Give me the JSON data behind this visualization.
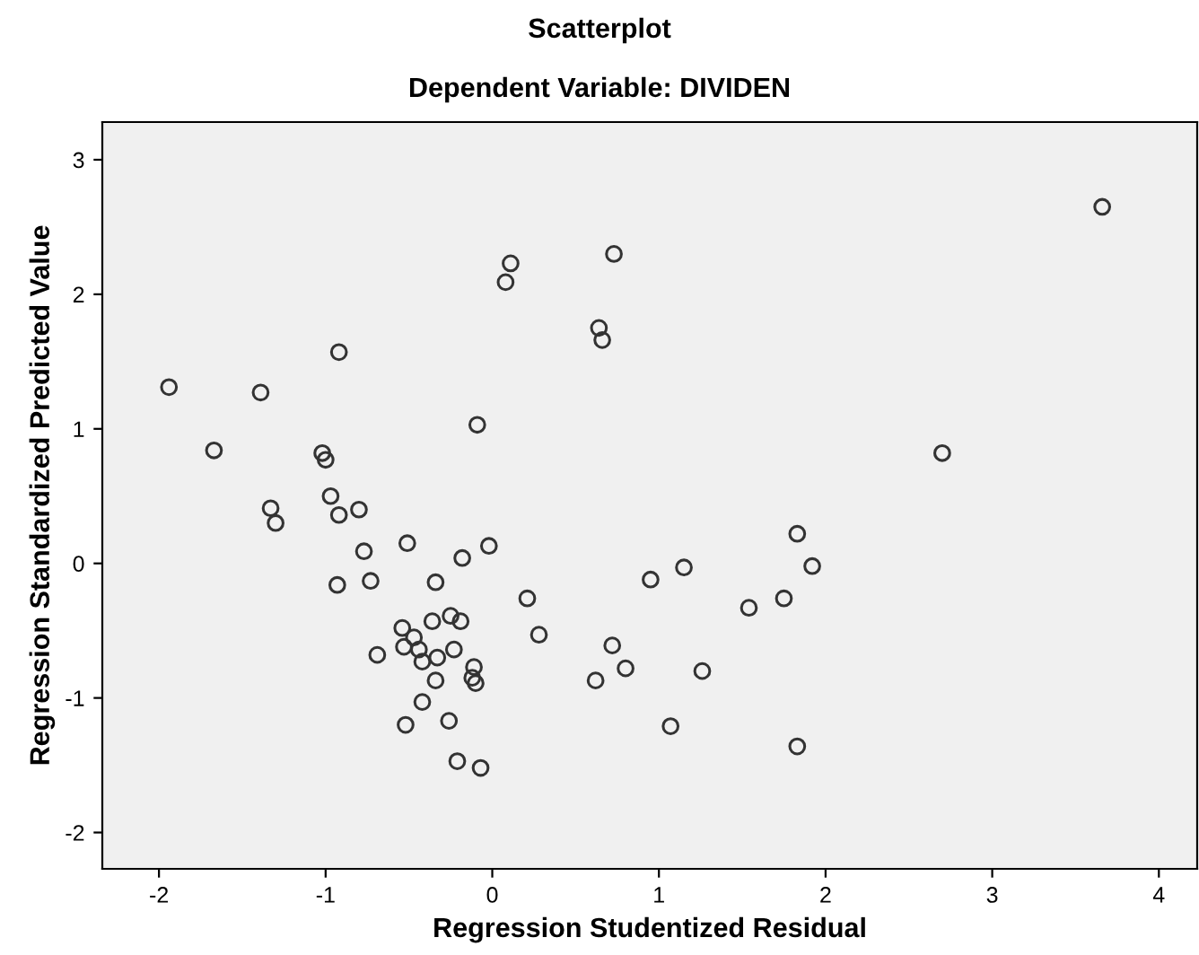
{
  "chart_data": {
    "type": "scatter",
    "title": "Scatterplot",
    "subtitle": "Dependent Variable: DIVIDEN",
    "xlabel": "Regression Studentized Residual",
    "ylabel": "Regression Standardized Predicted Value",
    "xlim": [
      -2.34,
      4.23
    ],
    "ylim": [
      -2.27,
      3.28
    ],
    "xticks": [
      -2,
      -1,
      0,
      1,
      2,
      3,
      4
    ],
    "yticks": [
      -2,
      -1,
      0,
      1,
      2,
      3
    ],
    "grid": false,
    "marker": "circle",
    "series": [
      {
        "color": "#333333",
        "x": [
          -1.94,
          -1.67,
          -1.39,
          -0.92,
          -1.02,
          -1.0,
          -0.09,
          0.08,
          0.11,
          0.73,
          0.64,
          0.66,
          3.66,
          2.7,
          -1.33,
          -1.3,
          -0.97,
          -0.92,
          -0.8,
          -0.77,
          -0.51,
          -0.02,
          -0.18,
          -0.93,
          -0.73,
          -0.34,
          0.21,
          0.28,
          -0.54,
          -0.47,
          -0.53,
          -0.44,
          -0.36,
          -0.25,
          -0.19,
          -0.23,
          -0.69,
          -0.42,
          -0.33,
          -0.34,
          -0.11,
          -0.12,
          -0.1,
          -0.42,
          -0.52,
          -0.26,
          -0.21,
          -0.07,
          0.62,
          0.72,
          0.8,
          0.95,
          1.15,
          1.26,
          1.07,
          1.54,
          1.75,
          1.83,
          1.92,
          1.83
        ],
        "values": [
          1.31,
          0.84,
          1.27,
          1.57,
          0.82,
          0.77,
          1.03,
          2.09,
          2.23,
          2.3,
          1.75,
          1.66,
          2.65,
          0.82,
          0.41,
          0.3,
          0.5,
          0.36,
          0.4,
          0.09,
          0.15,
          0.13,
          0.04,
          -0.16,
          -0.13,
          -0.14,
          -0.26,
          -0.53,
          -0.48,
          -0.55,
          -0.62,
          -0.64,
          -0.43,
          -0.39,
          -0.43,
          -0.64,
          -0.68,
          -0.73,
          -0.7,
          -0.87,
          -0.77,
          -0.85,
          -0.89,
          -1.03,
          -1.2,
          -1.17,
          -1.47,
          -1.52,
          -0.87,
          -0.61,
          -0.78,
          -0.12,
          -0.03,
          -0.8,
          -1.21,
          -0.33,
          -0.26,
          0.22,
          -0.02,
          -1.36
        ]
      }
    ]
  }
}
